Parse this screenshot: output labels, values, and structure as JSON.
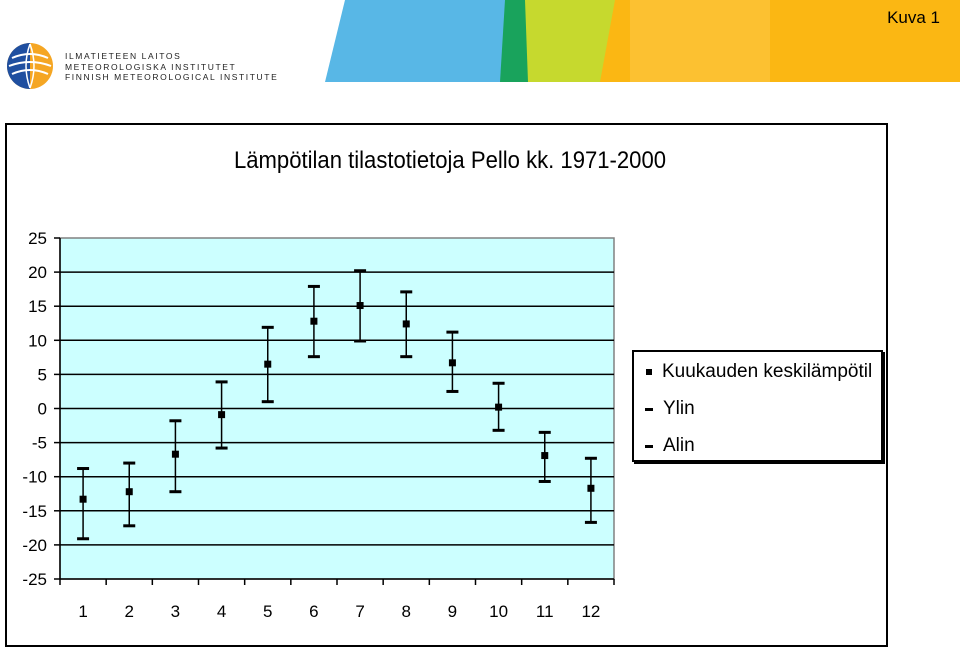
{
  "slide_label": "Kuva 1",
  "logo": {
    "lines": [
      "ILMATIETEEN LAITOS",
      "METEOROLOGISKA INSTITUTET",
      "FINNISH METEOROLOGICAL INSTITUTE"
    ]
  },
  "colors": {
    "plot_background": "#ccffff",
    "header_blue": "#58b7e6",
    "header_green": "#19a35c",
    "header_lime": "#c6d92e",
    "header_yellow": "#fbb713"
  },
  "chart_data": {
    "type": "scatter",
    "title": "Lämpötilan tilastotietoja  Pello kk. 1971-2000",
    "categories": [
      "1",
      "2",
      "3",
      "4",
      "5",
      "6",
      "7",
      "8",
      "9",
      "10",
      "11",
      "12"
    ],
    "yticks": [
      "25",
      "20",
      "15",
      "10",
      "5",
      "0",
      "-5",
      "-10",
      "-15",
      "-20",
      "-25"
    ],
    "ylim": [
      -25,
      25
    ],
    "grid": true,
    "legend_position": "right",
    "series": [
      {
        "name": "Kuukauden keskilämpötil",
        "marker": "square",
        "values": [
          -13.3,
          -12.2,
          -6.7,
          -0.9,
          6.5,
          12.8,
          15.1,
          12.4,
          6.7,
          0.2,
          -6.9,
          -11.7
        ]
      },
      {
        "name": "Ylin",
        "marker": "dash",
        "values": [
          -8.8,
          -8.0,
          -1.8,
          3.9,
          11.9,
          17.9,
          20.2,
          17.1,
          11.2,
          3.7,
          -3.5,
          -7.3
        ]
      },
      {
        "name": "Alin",
        "marker": "dash",
        "values": [
          -19.1,
          -17.2,
          -12.2,
          -5.8,
          1.0,
          7.6,
          9.9,
          7.6,
          2.5,
          -3.2,
          -10.7,
          -16.7
        ]
      }
    ]
  }
}
